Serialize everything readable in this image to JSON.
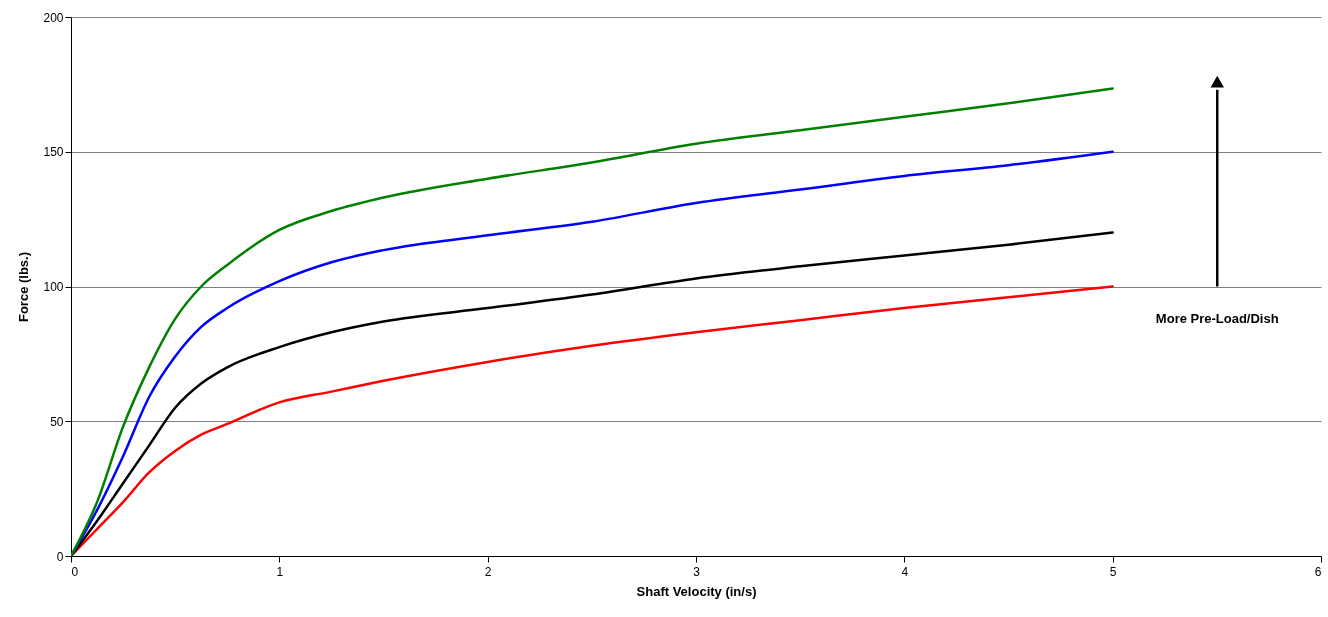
{
  "chart_data": {
    "type": "line",
    "xlabel": "Shaft Velocity (in/s)",
    "ylabel": "Force (lbs.)",
    "x": [
      0,
      0.125,
      0.25,
      0.375,
      0.5,
      0.625,
      0.75,
      1,
      1.25,
      1.5,
      2,
      2.5,
      3,
      3.5,
      4,
      4.5,
      5
    ],
    "series": [
      {
        "color": "#ff0000",
        "values": [
          0,
          10,
          20,
          31,
          39,
          45,
          49,
          57,
          61,
          65,
          72,
          78,
          83,
          87.5,
          92,
          96,
          100
        ]
      },
      {
        "color": "#000000",
        "values": [
          0,
          13,
          27,
          41,
          55,
          64,
          70,
          77.5,
          83,
          87,
          92,
          97,
          103,
          107.5,
          111.5,
          115.5,
          120
        ]
      },
      {
        "color": "#0000ff",
        "values": [
          0,
          17,
          37,
          59,
          74,
          85,
          92,
          102,
          109,
          113.5,
          119,
          124,
          131,
          136,
          141,
          145,
          150
        ]
      },
      {
        "color": "#008000",
        "values": [
          0,
          20,
          48,
          70,
          88,
          100,
          108,
          121,
          128,
          133,
          140,
          146,
          153,
          158,
          163,
          168,
          173.5
        ]
      }
    ],
    "xlim": [
      0,
      6
    ],
    "xticks": [
      0,
      1,
      2,
      3,
      4,
      5,
      6
    ],
    "ylim": [
      0,
      200
    ],
    "yticks": [
      0,
      50,
      100,
      150,
      200
    ],
    "grid": "y",
    "marker": "none",
    "line_style": "solid",
    "annotations": [
      "More Pre-Load/Dish"
    ]
  }
}
